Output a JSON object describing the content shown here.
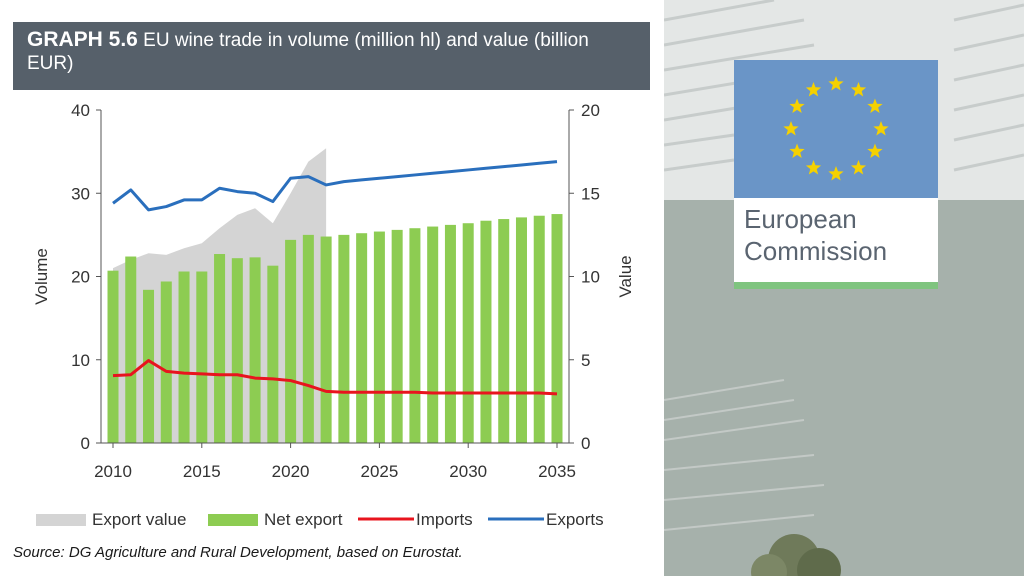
{
  "title": {
    "bold": "GRAPH 5.6",
    "text": "EU wine trade in volume (million hl) and value (billion EUR)"
  },
  "source": "Source: DG Agriculture and Rural Development, based on Eurostat.",
  "logo": {
    "line1": "European",
    "line2": "Commission",
    "flag_color": "#6a95c7",
    "star_color": "#f5d100",
    "bar_color": "#7fc47f"
  },
  "colors": {
    "net_export": "#8dcc52",
    "export_value": "#d4d4d4",
    "imports": "#e8141e",
    "exports": "#2a6fbd",
    "title_bg": "#56606a"
  },
  "chart_data": {
    "type": "bar",
    "xlabel": "",
    "ylabel": "Volume",
    "y2label": "Value",
    "ylim": [
      0,
      40
    ],
    "y2lim": [
      0,
      20
    ],
    "yticks": [
      0,
      10,
      20,
      30,
      40
    ],
    "y2ticks": [
      0,
      5,
      10,
      15,
      20
    ],
    "xticks": [
      2010,
      2015,
      2020,
      2025,
      2030,
      2035
    ],
    "x": [
      2010,
      2011,
      2012,
      2013,
      2014,
      2015,
      2016,
      2017,
      2018,
      2019,
      2020,
      2021,
      2022,
      2023,
      2024,
      2025,
      2026,
      2027,
      2028,
      2029,
      2030,
      2031,
      2032,
      2033,
      2034,
      2035
    ],
    "legend_position": "bottom",
    "series": [
      {
        "name": "Export value",
        "kind": "area",
        "axis": "right",
        "x": [
          2010,
          2011,
          2012,
          2013,
          2014,
          2015,
          2016,
          2017,
          2018,
          2019,
          2020,
          2021,
          2022
        ],
        "values": [
          10.5,
          11.0,
          11.4,
          11.3,
          11.7,
          12.0,
          12.9,
          13.7,
          14.1,
          13.2,
          15.0,
          16.9,
          17.7
        ]
      },
      {
        "name": "Net export",
        "kind": "bar",
        "axis": "left",
        "values": [
          20.7,
          22.4,
          18.4,
          19.4,
          20.6,
          20.6,
          22.7,
          22.2,
          22.3,
          21.3,
          24.4,
          25.0,
          24.8,
          25.0,
          25.2,
          25.4,
          25.6,
          25.8,
          26.0,
          26.2,
          26.4,
          26.7,
          26.9,
          27.1,
          27.3,
          27.5
        ]
      },
      {
        "name": "Imports",
        "kind": "line",
        "axis": "left",
        "values": [
          8.1,
          8.2,
          9.9,
          8.6,
          8.4,
          8.3,
          8.2,
          8.2,
          7.8,
          7.7,
          7.5,
          6.9,
          6.2,
          6.1,
          6.1,
          6.1,
          6.1,
          6.1,
          6.0,
          6.0,
          6.0,
          6.0,
          6.0,
          6.0,
          6.0,
          5.9
        ]
      },
      {
        "name": "Exports",
        "kind": "line",
        "axis": "right",
        "values": [
          14.4,
          15.2,
          14.0,
          14.2,
          14.6,
          14.6,
          15.3,
          15.1,
          15.0,
          14.5,
          15.9,
          16.0,
          15.5,
          15.7,
          15.8,
          15.9,
          16.0,
          16.1,
          16.2,
          16.3,
          16.4,
          16.5,
          16.6,
          16.7,
          16.8,
          16.9
        ]
      }
    ]
  }
}
